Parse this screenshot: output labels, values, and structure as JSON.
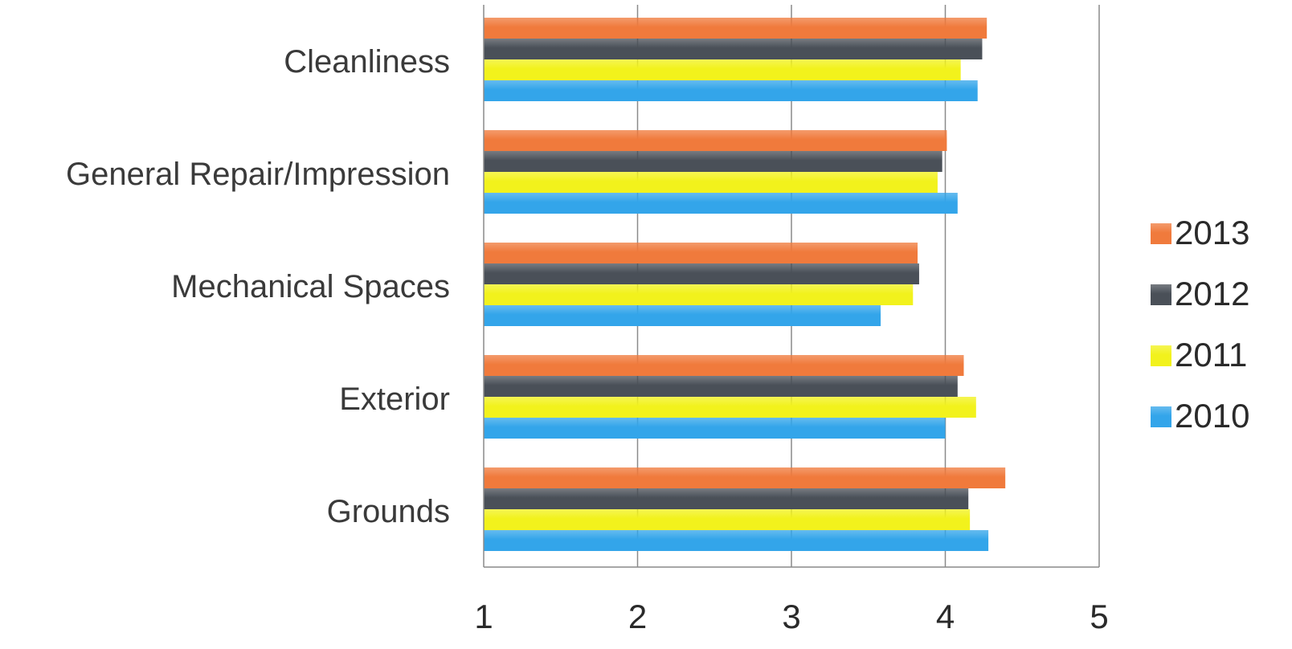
{
  "chart_data": {
    "type": "bar",
    "orientation": "horizontal",
    "categories": [
      "Cleanliness",
      "General Repair/Impression",
      "Mechanical Spaces",
      "Exterior",
      "Grounds"
    ],
    "series": [
      {
        "name": "2013",
        "color": "#f07a3c",
        "values": [
          4.27,
          4.01,
          3.82,
          4.12,
          4.39
        ]
      },
      {
        "name": "2012",
        "color": "#4a5058",
        "values": [
          4.24,
          3.98,
          3.83,
          4.08,
          4.15
        ]
      },
      {
        "name": "2011",
        "color": "#f2f21c",
        "values": [
          4.1,
          3.95,
          3.79,
          4.2,
          4.16
        ]
      },
      {
        "name": "2010",
        "color": "#33a5ea",
        "values": [
          4.21,
          4.08,
          3.58,
          4.0,
          4.28
        ]
      }
    ],
    "xlim": [
      1,
      5
    ],
    "xticks": [
      "1",
      "2",
      "3",
      "4",
      "5"
    ],
    "grid": true,
    "legend_position": "right",
    "title": "",
    "xlabel": "",
    "ylabel": ""
  }
}
